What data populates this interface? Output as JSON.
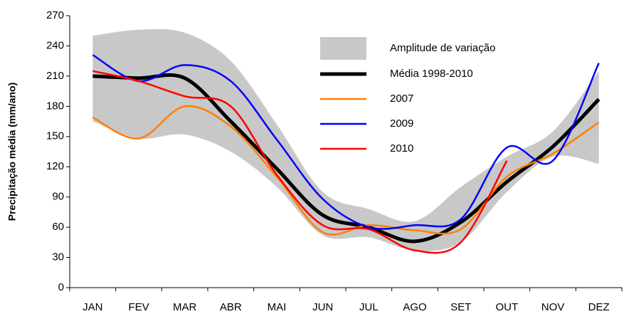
{
  "chart_data": {
    "type": "line",
    "y_label": "Precipitação média (mm/ano)",
    "categories": [
      "JAN",
      "FEV",
      "MAR",
      "ABR",
      "MAI",
      "JUN",
      "JUL",
      "AGO",
      "SET",
      "OUT",
      "NOV",
      "DEZ"
    ],
    "ylim": [
      0,
      270
    ],
    "yticks": [
      0,
      30,
      60,
      90,
      120,
      150,
      180,
      210,
      240,
      270
    ],
    "grid": false,
    "series": [
      {
        "name": "Amplitude de variação",
        "type": "area",
        "color": "#c8c8c8",
        "high": [
          250,
          256,
          253,
          225,
          162,
          95,
          78,
          66,
          100,
          130,
          155,
          215
        ],
        "low": [
          165,
          148,
          152,
          135,
          100,
          52,
          50,
          37,
          45,
          95,
          130,
          123
        ]
      },
      {
        "name": "Média 1998-2010",
        "color": "#000000",
        "width": 5,
        "values": [
          210,
          208,
          208,
          165,
          118,
          72,
          60,
          46,
          65,
          105,
          140,
          187
        ]
      },
      {
        "name": "2007",
        "color": "#ff7f00",
        "width": 2.5,
        "values": [
          169,
          148,
          180,
          160,
          110,
          55,
          62,
          57,
          58,
          110,
          133,
          164
        ]
      },
      {
        "name": "2009",
        "color": "#0000ff",
        "width": 2.5,
        "values": [
          231,
          205,
          221,
          205,
          147,
          88,
          60,
          62,
          68,
          139,
          126,
          223
        ]
      },
      {
        "name": "2010",
        "color": "#ff0000",
        "width": 2.5,
        "values": [
          215,
          205,
          190,
          180,
          112,
          62,
          58,
          37,
          45,
          126,
          null,
          null
        ]
      }
    ]
  }
}
